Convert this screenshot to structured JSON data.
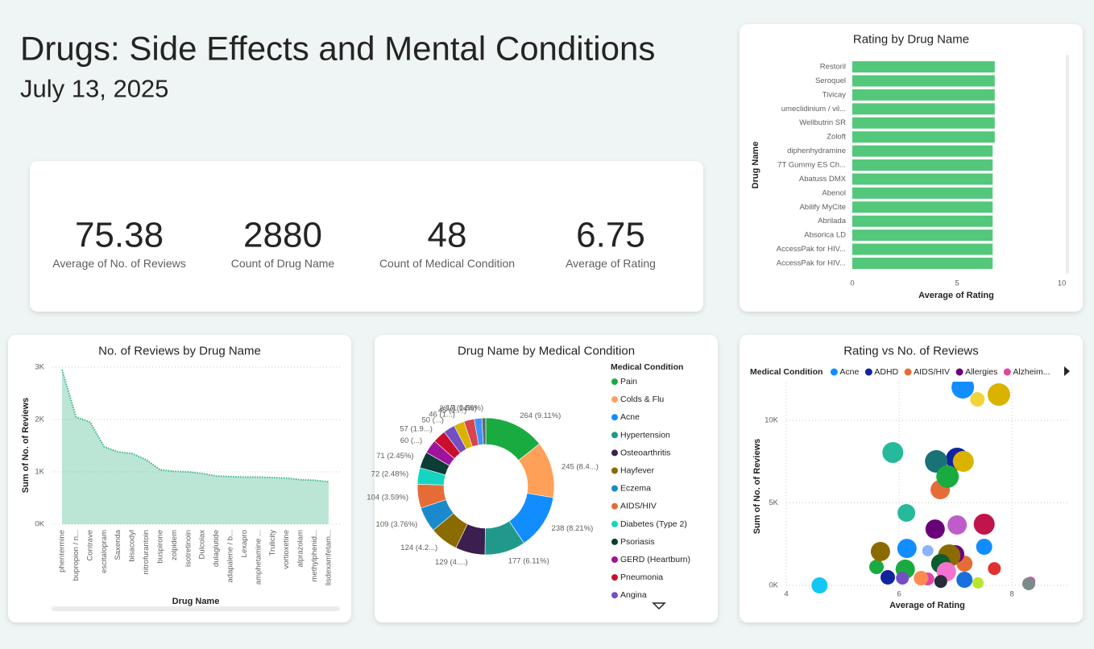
{
  "header": {
    "title": "Drugs: Side Effects and Mental Conditions",
    "date": "July 13, 2025"
  },
  "kpis": [
    {
      "value": 75.38,
      "label": "Average of No. of Reviews"
    },
    {
      "value": 2880,
      "label": "Count of Drug Name"
    },
    {
      "value": 48,
      "label": "Count of Medical Condition"
    },
    {
      "value": 6.75,
      "label": "Average of Rating"
    }
  ],
  "chart_data": [
    {
      "type": "bar",
      "horizontal": true,
      "title": "Rating by Drug Name",
      "categories": [
        "Restoril",
        "Seroquel",
        "Tivicay",
        "umeclidinium / vil...",
        "Wellbutrin SR",
        "Zoloft",
        "diphenhydramine",
        "7T Gummy ES Ch...",
        "Abatuss DMX",
        "Abenol",
        "Abilify MyCite",
        "Abrilada",
        "Absorica LD",
        "AccessPak for HIV...",
        "AccessPak for HIV..."
      ],
      "values": [
        6.8,
        6.8,
        6.8,
        6.8,
        6.8,
        6.8,
        6.7,
        6.7,
        6.7,
        6.7,
        6.7,
        6.7,
        6.7,
        6.7,
        6.7
      ],
      "color": "#53c77a",
      "xlim": [
        0,
        10
      ],
      "xticks": [
        0,
        5,
        10
      ],
      "xlabel": "Average of Rating",
      "ylabel": "Drug Name"
    },
    {
      "type": "area",
      "title": "No. of Reviews by Drug Name",
      "categories": [
        "phentermine",
        "bupropion / n...",
        "Contrave",
        "escitalopram",
        "Saxenda",
        "bisacodyl",
        "nitrofurantoin",
        "buspirone",
        "zolpidem",
        "isotretinoin",
        "Dulcolax",
        "dulaglutide",
        "adapalene / b...",
        "Lexapro",
        "amphetamine ...",
        "Trulicity",
        "vortioxetine",
        "alprazolam",
        "methylphenid...",
        "lisdexamfetam..."
      ],
      "values": [
        2950,
        2050,
        1950,
        1480,
        1380,
        1350,
        1230,
        1040,
        1010,
        1000,
        970,
        920,
        910,
        900,
        900,
        890,
        880,
        850,
        840,
        810
      ],
      "color": "#3db68a",
      "ylim": [
        0,
        3000
      ],
      "yticks": [
        {
          "value": 0,
          "label": "0K"
        },
        {
          "value": 1000,
          "label": "1K"
        },
        {
          "value": 2000,
          "label": "2K"
        },
        {
          "value": 3000,
          "label": "3K"
        }
      ],
      "grid": true,
      "xlabel": "Drug Name",
      "ylabel": "Sum of No. of Reviews"
    },
    {
      "type": "donut",
      "title": "Drug Name by Medical Condition",
      "legend_title": "Medical Condition",
      "categories": [
        "Pain",
        "Colds & Flu",
        "Acne",
        "Hypertension",
        "Osteoarthritis",
        "Hayfever",
        "Eczema",
        "AIDS/HIV",
        "Diabetes (Type 2)",
        "Psoriasis",
        "GERD (Heartburn)",
        "Pneumonia",
        "Angina",
        null,
        null,
        null,
        null
      ],
      "values": [
        264,
        245,
        238,
        177,
        129,
        124,
        109,
        104,
        72,
        71,
        60,
        57,
        50,
        46,
        45,
        33,
        17
      ],
      "value_labels": [
        "264 (9.11%)",
        "245 (8.4...)",
        "238 (8.21%)",
        "177 (6.11%)",
        "129 (4....)",
        "124 (4.2...)",
        "109 (3.76%)",
        "104 (3.59%)",
        "72 (2.48%)",
        "71 (2.45%)",
        "60 (...)",
        "57 (1.9...)",
        "50 (...)",
        "46 (1...)",
        "45 (1....)",
        "33 (1.14%)",
        "17 (0.59%)"
      ],
      "colors": [
        "#1aab40",
        "#ffa058",
        "#118dff",
        "#21998a",
        "#3b1f4e",
        "#8b6a00",
        "#1a8acc",
        "#e66c37",
        "#15d5c0",
        "#0b3d35",
        "#a0139c",
        "#c8102e",
        "#744ec2",
        "#d9b300",
        "#d64550",
        "#4092ff",
        "#5f6b6d"
      ]
    },
    {
      "type": "scatter",
      "title": "Rating vs No. of Reviews",
      "legend_title": "Medical Condition",
      "xlabel": "Average of Rating",
      "ylabel": "Sum of No. of Reviews",
      "xlim": [
        4,
        9
      ],
      "xticks": [
        4,
        6,
        8
      ],
      "ylim": [
        0,
        12000
      ],
      "yticks": [
        {
          "value": 0,
          "label": "0K"
        },
        {
          "value": 5000,
          "label": "5K"
        },
        {
          "value": 10000,
          "label": "10K"
        }
      ],
      "grid": true,
      "series": [
        {
          "name": "Acne",
          "color": "#118dff",
          "x": [
            7.13,
            6.14,
            7.51
          ],
          "values": [
            12000,
            2240,
            2340
          ],
          "sizes": [
            14,
            12,
            10
          ]
        },
        {
          "name": "ADHD",
          "color": "#12239e",
          "x": [
            7.03,
            5.8
          ],
          "values": [
            7660,
            490
          ],
          "sizes": [
            14,
            9
          ]
        },
        {
          "name": "AIDS/HIV",
          "color": "#e66c37",
          "x": [
            6.73,
            7.16
          ],
          "values": [
            5800,
            1320
          ],
          "sizes": [
            12,
            10
          ]
        },
        {
          "name": "Allergies",
          "color": "#6b007b",
          "x": [
            6.64,
            7.0
          ],
          "values": [
            3410,
            1900
          ],
          "sizes": [
            12,
            11
          ]
        },
        {
          "name": "Alzheim...",
          "color": "#e044a7",
          "x": [
            8.33,
            6.51
          ],
          "values": [
            240,
            390
          ],
          "sizes": [
            6,
            8
          ]
        },
        {
          "color": "#d9b300",
          "x": [
            7.77,
            7.14
          ],
          "values": [
            11560,
            7510
          ],
          "sizes": [
            14,
            13
          ]
        },
        {
          "color": "#f2d43a",
          "x": [
            7.39
          ],
          "values": [
            11270
          ],
          "sizes": [
            9
          ]
        },
        {
          "color": "#26b99a",
          "x": [
            5.89,
            6.13
          ],
          "values": [
            8050,
            4390
          ],
          "sizes": [
            13,
            11
          ]
        },
        {
          "color": "#197278",
          "x": [
            6.66
          ],
          "values": [
            7510
          ],
          "sizes": [
            14
          ]
        },
        {
          "color": "#1aab40",
          "x": [
            6.86,
            5.6,
            6.11
          ],
          "values": [
            6590,
            1120,
            980
          ],
          "sizes": [
            14,
            9,
            12
          ]
        },
        {
          "color": "#be5dc9",
          "x": [
            7.03
          ],
          "values": [
            3660
          ],
          "sizes": [
            12
          ]
        },
        {
          "color": "#c0144a",
          "x": [
            7.51
          ],
          "values": [
            3710
          ],
          "sizes": [
            13
          ]
        },
        {
          "color": "#8ab4ff",
          "x": [
            6.51
          ],
          "values": [
            2100
          ],
          "sizes": [
            7
          ]
        },
        {
          "color": "#8b6a00",
          "x": [
            5.67,
            6.89
          ],
          "values": [
            2050,
            1800
          ],
          "sizes": [
            12,
            14
          ]
        },
        {
          "color": "#744ec2",
          "x": [
            6.06
          ],
          "values": [
            440
          ],
          "sizes": [
            8
          ]
        },
        {
          "color": "#0b5d2e",
          "x": [
            6.74
          ],
          "values": [
            1320
          ],
          "sizes": [
            12
          ]
        },
        {
          "color": "#f472d0",
          "x": [
            6.84
          ],
          "values": [
            830
          ],
          "sizes": [
            12
          ]
        },
        {
          "color": "#1a6fe0",
          "x": [
            7.16
          ],
          "values": [
            340
          ],
          "sizes": [
            10
          ]
        },
        {
          "color": "#2a2a3a",
          "x": [
            6.74
          ],
          "values": [
            240
          ],
          "sizes": [
            8
          ]
        },
        {
          "color": "#e03030",
          "x": [
            7.69
          ],
          "values": [
            1020
          ],
          "sizes": [
            8
          ]
        },
        {
          "color": "#b8e62e",
          "x": [
            7.4
          ],
          "values": [
            150
          ],
          "sizes": [
            7
          ]
        },
        {
          "color": "#7d8a8c",
          "x": [
            8.3
          ],
          "values": [
            100
          ],
          "sizes": [
            8
          ]
        },
        {
          "color": "#15c6f4",
          "x": [
            4.59
          ],
          "values": [
            0
          ],
          "sizes": [
            10
          ]
        },
        {
          "color": "#ff8a50",
          "x": [
            6.39
          ],
          "values": [
            440
          ],
          "sizes": [
            9
          ]
        }
      ]
    }
  ]
}
